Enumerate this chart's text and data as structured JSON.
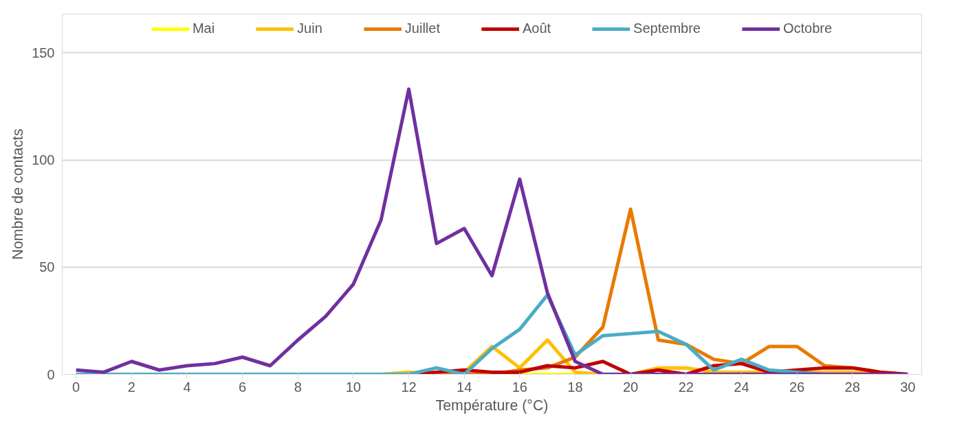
{
  "chart_data": {
    "type": "line",
    "xlabel": "Température (°C)",
    "ylabel": "Nombre de contacts",
    "x": [
      0,
      1,
      2,
      3,
      4,
      5,
      6,
      7,
      8,
      9,
      10,
      11,
      12,
      13,
      14,
      15,
      16,
      17,
      18,
      19,
      20,
      21,
      22,
      23,
      24,
      25,
      26,
      27,
      28,
      29,
      30
    ],
    "xlim": [
      -0.5,
      30.5
    ],
    "xticks": [
      0,
      2,
      4,
      6,
      8,
      10,
      12,
      14,
      16,
      18,
      20,
      22,
      24,
      26,
      28,
      30
    ],
    "ylim": [
      0,
      150
    ],
    "yticks": [
      0,
      50,
      100,
      150
    ],
    "grid": "y",
    "legend": "top",
    "series": [
      {
        "name": "Mai",
        "color": "#ffff00",
        "values": [
          null,
          null,
          null,
          null,
          null,
          null,
          null,
          null,
          null,
          null,
          null,
          null,
          null,
          null,
          null,
          0,
          0,
          0,
          0,
          null,
          null,
          null,
          null,
          null,
          null,
          null,
          null,
          null,
          null,
          null,
          null
        ]
      },
      {
        "name": "Juin",
        "color": "#ffc000",
        "values": [
          null,
          null,
          null,
          null,
          null,
          null,
          null,
          null,
          null,
          null,
          null,
          0,
          1,
          0,
          1,
          13,
          3,
          16,
          1,
          0,
          0,
          3,
          3,
          1,
          1,
          1,
          1,
          1,
          1,
          0,
          0
        ]
      },
      {
        "name": "Juillet",
        "color": "#e97a00",
        "values": [
          null,
          null,
          null,
          null,
          null,
          null,
          null,
          null,
          null,
          null,
          null,
          null,
          null,
          0,
          0,
          0,
          2,
          3,
          8,
          22,
          77,
          16,
          14,
          7,
          5,
          13,
          13,
          4,
          3,
          1,
          0
        ]
      },
      {
        "name": "Août",
        "color": "#c00000",
        "values": [
          null,
          null,
          null,
          null,
          null,
          null,
          null,
          null,
          null,
          null,
          null,
          null,
          0,
          1,
          2,
          1,
          1,
          4,
          3,
          6,
          0,
          2,
          0,
          4,
          5,
          1,
          2,
          3,
          3,
          1,
          0
        ]
      },
      {
        "name": "Septembre",
        "color": "#4bacc6",
        "values": [
          0,
          0,
          0,
          0,
          0,
          0,
          0,
          0,
          0,
          0,
          0,
          0,
          0,
          3,
          0,
          12,
          21,
          37,
          9,
          18,
          19,
          20,
          14,
          2,
          7,
          2,
          1,
          0,
          0,
          null,
          null
        ]
      },
      {
        "name": "Octobre",
        "color": "#7030a0",
        "values": [
          2,
          1,
          6,
          2,
          4,
          5,
          8,
          4,
          16,
          27,
          42,
          72,
          133,
          61,
          68,
          46,
          91,
          38,
          6,
          0,
          0,
          0,
          0,
          0,
          0,
          0,
          0,
          0,
          0,
          0,
          0
        ]
      }
    ]
  }
}
